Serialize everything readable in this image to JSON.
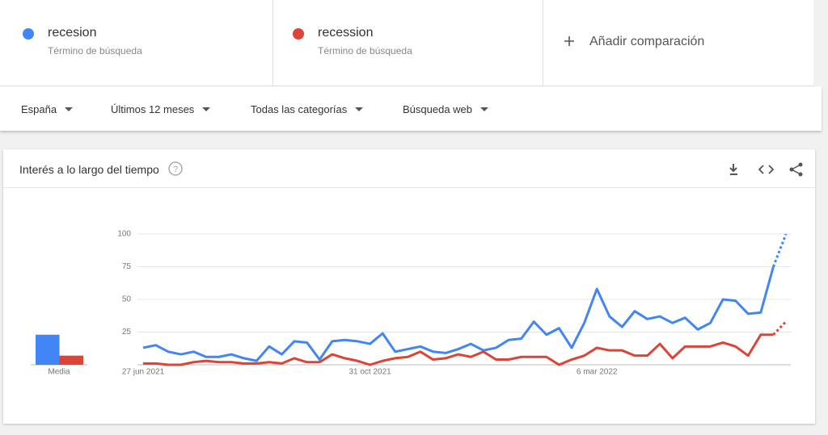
{
  "compare": {
    "terms": [
      {
        "subtitle": "Término de búsqueda"
      },
      {
        "subtitle": "Término de búsqueda"
      }
    ],
    "add_label": "Añadir comparación"
  },
  "filters": [
    "España",
    "Últimos 12 meses",
    "Todas las categorías",
    "Búsqueda web"
  ],
  "chart_data": {
    "type": "line",
    "title": "Interés a lo largo del tiempo",
    "categories": [
      "27 jun 2021",
      null,
      null,
      null,
      null,
      null,
      null,
      null,
      null,
      null,
      null,
      null,
      null,
      null,
      null,
      null,
      null,
      null,
      "31 oct 2021",
      null,
      null,
      null,
      null,
      null,
      null,
      null,
      null,
      null,
      null,
      null,
      null,
      null,
      null,
      null,
      null,
      null,
      "6 mar 2022",
      null,
      null,
      null,
      null,
      null,
      null,
      null,
      null,
      null,
      null,
      null,
      null,
      null,
      null,
      null
    ],
    "series": [
      {
        "name": "recesion",
        "color": "#4285f4",
        "values": [
          13,
          15,
          10,
          8,
          10,
          6,
          6,
          8,
          5,
          3,
          14,
          8,
          18,
          17,
          4,
          18,
          19,
          18,
          16,
          24,
          10,
          12,
          14,
          10,
          9,
          12,
          16,
          11,
          13,
          19,
          20,
          33,
          23,
          28,
          13,
          32,
          58,
          37,
          29,
          41,
          35,
          37,
          32,
          36,
          27,
          32,
          50,
          49,
          39,
          40,
          75,
          100
        ]
      },
      {
        "name": "recession",
        "color": "#db4437",
        "values": [
          1,
          1,
          0,
          0,
          2,
          3,
          2,
          2,
          1,
          1,
          2,
          1,
          5,
          2,
          2,
          8,
          5,
          3,
          0,
          3,
          5,
          6,
          10,
          4,
          5,
          8,
          6,
          10,
          4,
          4,
          6,
          6,
          6,
          0,
          4,
          7,
          13,
          11,
          11,
          7,
          7,
          16,
          5,
          14,
          14,
          14,
          17,
          14,
          7,
          23,
          23,
          33
        ]
      }
    ],
    "averages": {
      "label": "Media",
      "values": [
        23,
        7
      ]
    },
    "ylim": [
      0,
      100
    ],
    "yticks": [
      25,
      50,
      75,
      100
    ],
    "grid": true
  }
}
